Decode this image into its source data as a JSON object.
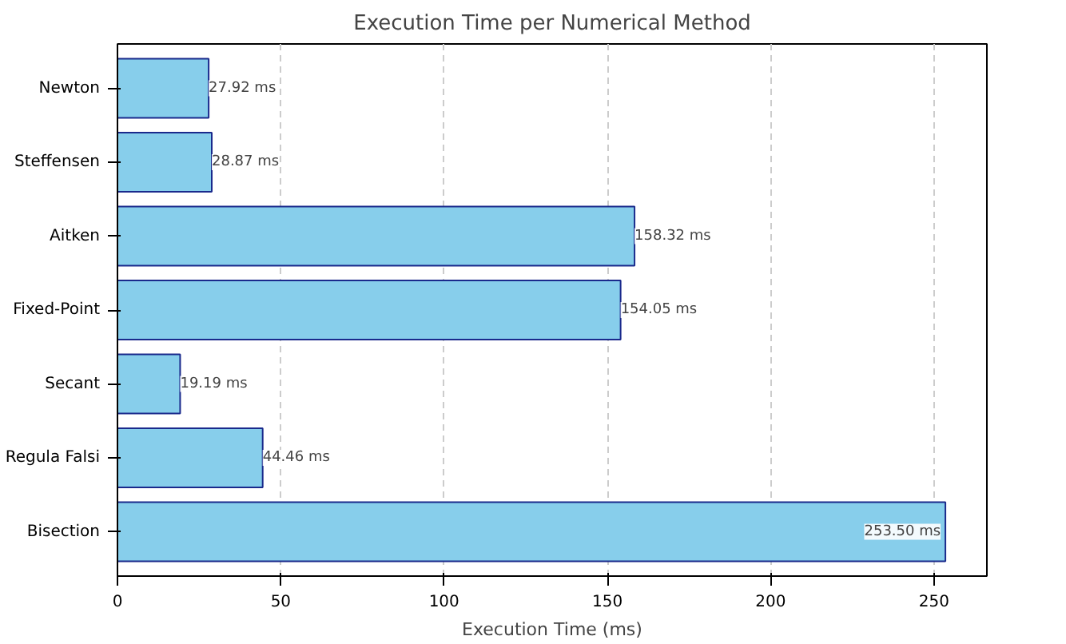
{
  "chart_data": {
    "type": "bar",
    "orientation": "horizontal",
    "title": "Execution Time per Numerical Method",
    "xlabel": "Execution Time (ms)",
    "categories": [
      "Newton",
      "Steffensen",
      "Aitken",
      "Fixed-Point",
      "Secant",
      "Regula Falsi",
      "Bisection"
    ],
    "values": [
      27.92,
      28.87,
      158.32,
      154.05,
      19.19,
      44.46,
      253.5
    ],
    "value_labels": [
      "27.92 ms",
      "28.87 ms",
      "158.32 ms",
      "154.05 ms",
      "19.19 ms",
      "44.46 ms",
      "253.50 ms"
    ],
    "color": "#87ceeb",
    "xlim": [
      0,
      266.2
    ],
    "xticks": [
      0,
      50,
      100,
      150,
      200,
      250
    ],
    "grid": "x"
  }
}
